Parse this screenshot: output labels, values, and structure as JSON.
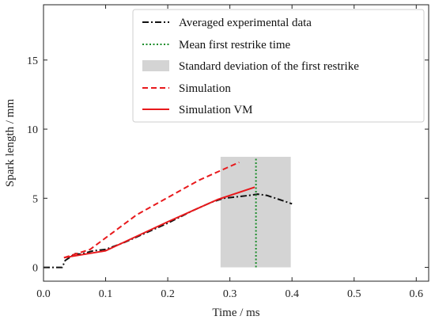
{
  "chart_data": {
    "type": "line",
    "xlabel": "Time / ms",
    "ylabel": "Spark length / mm",
    "xlim": [
      0.0,
      0.62
    ],
    "ylim": [
      -1.0,
      19.0
    ],
    "xticks": [
      0.0,
      0.1,
      0.2,
      0.3,
      0.4,
      0.5,
      0.6
    ],
    "xtick_labels": [
      "0.0",
      "0.1",
      "0.2",
      "0.3",
      "0.4",
      "0.5",
      "0.6"
    ],
    "yticks": [
      0,
      5,
      10,
      15
    ],
    "ytick_labels": [
      "0",
      "5",
      "10",
      "15"
    ],
    "legend_position": "top-right",
    "legend": [
      "Averaged experimental data",
      "Mean first restrike time",
      "Standard deviation of the first restrike",
      "Simulation",
      "Simulation VM"
    ],
    "series": [
      {
        "name": "Averaged experimental data",
        "style": "dash-dot",
        "color": "#111111",
        "x": [
          0.0,
          0.03,
          0.035,
          0.045,
          0.05,
          0.06,
          0.08,
          0.1,
          0.13,
          0.16,
          0.2,
          0.24,
          0.27,
          0.29,
          0.31,
          0.33,
          0.345,
          0.36,
          0.38,
          0.4
        ],
        "y": [
          0.0,
          0.0,
          0.5,
          0.8,
          1.0,
          0.95,
          1.2,
          1.3,
          1.8,
          2.4,
          3.2,
          4.1,
          4.7,
          5.0,
          5.1,
          5.2,
          5.3,
          5.2,
          4.9,
          4.6
        ]
      },
      {
        "name": "Simulation",
        "style": "dashed",
        "color": "#e8191c",
        "x": [
          0.033,
          0.075,
          0.15,
          0.25,
          0.315
        ],
        "y": [
          0.7,
          1.3,
          3.8,
          6.3,
          7.6
        ]
      },
      {
        "name": "Simulation VM",
        "style": "solid",
        "color": "#e8191c",
        "x": [
          0.033,
          0.1,
          0.2,
          0.28,
          0.34
        ],
        "y": [
          0.7,
          1.2,
          3.3,
          4.9,
          5.8
        ]
      }
    ],
    "mean_first_restrike_time": 0.342,
    "restrike_std_band": {
      "x_from": 0.285,
      "x_to": 0.398,
      "y_from": 0.0,
      "y_to": 8.0
    },
    "colors": {
      "mean_line": "#1a8c2a",
      "band": "#d4d4d4"
    }
  }
}
